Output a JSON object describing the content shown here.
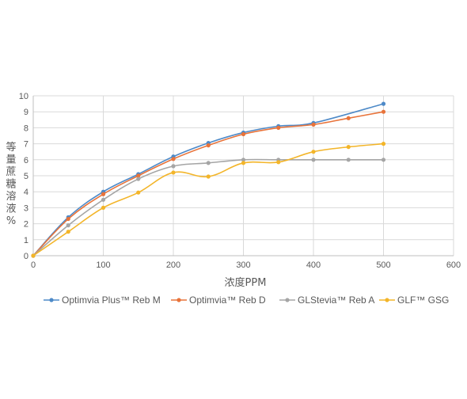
{
  "chart_data": {
    "type": "line",
    "title": "",
    "xlabel": "浓度PPM",
    "ylabel": "等量蔗糖溶液%",
    "xlim": [
      0,
      600
    ],
    "ylim": [
      0,
      10
    ],
    "x_ticks": [
      0,
      100,
      200,
      300,
      400,
      500,
      600
    ],
    "y_ticks": [
      0,
      1,
      2,
      3,
      4,
      5,
      6,
      7,
      8,
      9,
      10
    ],
    "grid": true,
    "legend_position": "bottom",
    "series": [
      {
        "name": "Optimvia Plus™ Reb M",
        "color": "#4e8ac8",
        "points": [
          [
            0,
            0
          ],
          [
            50,
            2.4
          ],
          [
            100,
            4.0
          ],
          [
            150,
            5.1
          ],
          [
            200,
            6.2
          ],
          [
            250,
            7.05
          ],
          [
            300,
            7.7
          ],
          [
            350,
            8.1
          ],
          [
            400,
            8.3
          ],
          [
            500,
            9.5
          ]
        ]
      },
      {
        "name": "Optimvia™ Reb D",
        "color": "#e8733a",
        "points": [
          [
            0,
            0
          ],
          [
            50,
            2.3
          ],
          [
            100,
            3.85
          ],
          [
            150,
            5.0
          ],
          [
            200,
            6.05
          ],
          [
            250,
            6.9
          ],
          [
            300,
            7.6
          ],
          [
            350,
            8.0
          ],
          [
            400,
            8.2
          ],
          [
            450,
            8.6
          ],
          [
            500,
            9.0
          ]
        ]
      },
      {
        "name": "GLStevia™ Reb A",
        "color": "#a5a5a5",
        "points": [
          [
            0,
            0
          ],
          [
            50,
            1.9
          ],
          [
            100,
            3.5
          ],
          [
            150,
            4.8
          ],
          [
            200,
            5.6
          ],
          [
            250,
            5.8
          ],
          [
            300,
            6.0
          ],
          [
            350,
            6.0
          ],
          [
            400,
            6.0
          ],
          [
            450,
            6.0
          ],
          [
            500,
            6.0
          ]
        ]
      },
      {
        "name": "GLF™ GSG",
        "color": "#f3b529",
        "points": [
          [
            0,
            0
          ],
          [
            50,
            1.5
          ],
          [
            100,
            3.0
          ],
          [
            150,
            3.95
          ],
          [
            200,
            5.2
          ],
          [
            250,
            4.95
          ],
          [
            300,
            5.8
          ],
          [
            350,
            5.85
          ],
          [
            400,
            6.5
          ],
          [
            450,
            6.8
          ],
          [
            500,
            7.0
          ]
        ]
      }
    ]
  }
}
